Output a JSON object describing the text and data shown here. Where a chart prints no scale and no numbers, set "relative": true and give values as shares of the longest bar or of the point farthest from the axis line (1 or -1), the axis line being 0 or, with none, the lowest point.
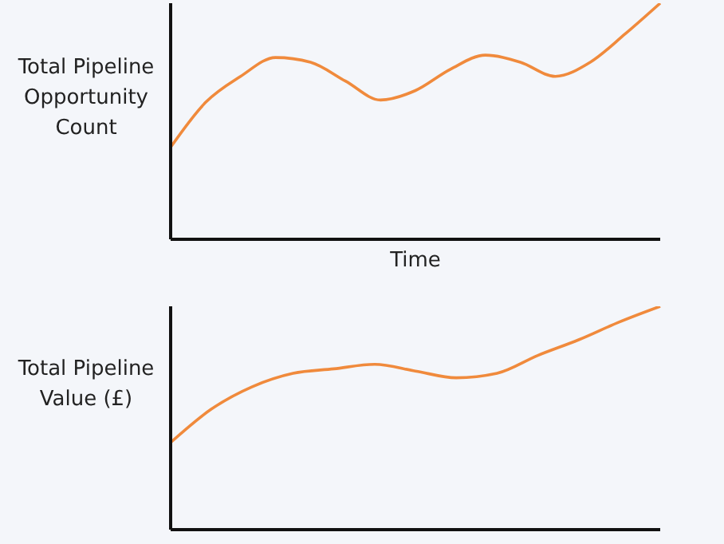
{
  "chart_data": [
    {
      "type": "line",
      "relative": true,
      "xlabel": "Time",
      "ylabel": "Total Pipeline Opportunity Count",
      "categories": [
        null,
        null,
        null,
        null,
        null,
        null,
        null,
        null,
        null,
        null,
        null,
        null,
        null,
        null,
        null
      ],
      "series": [
        {
          "color": "#f08a3c",
          "values": [
            0.39,
            0.58,
            0.69,
            0.77,
            0.75,
            0.67,
            0.59,
            0.63,
            0.72,
            0.78,
            0.75,
            0.69,
            0.75,
            0.87,
            1
          ]
        }
      ],
      "marker": "none",
      "tick_labels": false
    },
    {
      "type": "line",
      "relative": true,
      "ylabel": "Total Pipeline Value (£)",
      "categories": [
        null,
        null,
        null,
        null,
        null,
        null,
        null,
        null,
        null,
        null,
        null,
        null,
        null
      ],
      "series": [
        {
          "color": "#f08a3c",
          "values": [
            0.39,
            0.54,
            0.64,
            0.7,
            0.72,
            0.74,
            0.71,
            0.68,
            0.7,
            0.78,
            0.85,
            0.93,
            1
          ]
        }
      ],
      "marker": "none",
      "tick_labels": false
    }
  ]
}
